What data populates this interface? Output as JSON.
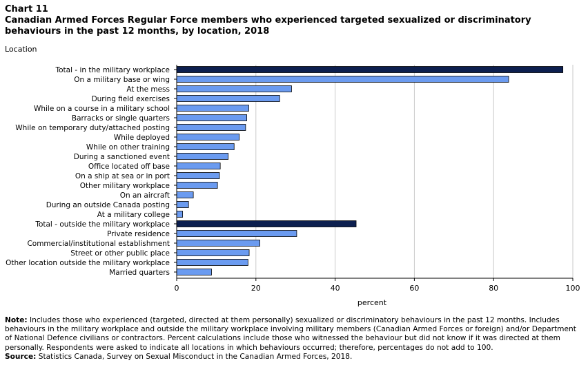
{
  "header": {
    "chart_number": "Chart 11",
    "title": "Canadian Armed Forces Regular Force members who experienced targeted sexualized or discriminatory behaviours in the past 12 months, by location, 2018"
  },
  "chart_data": {
    "type": "bar",
    "orientation": "horizontal",
    "ylabel": "Location",
    "xlabel": "percent",
    "xlim": [
      0,
      100
    ],
    "xticks": [
      0,
      20,
      40,
      60,
      80,
      100
    ],
    "grid": "vertical",
    "categories": [
      "Total - in the military workplace",
      "On a military base or wing",
      "At the mess",
      "During field exercises",
      "While on a course in a military school",
      "Barracks or single quarters",
      "While on temporary duty/attached posting",
      "While deployed",
      "While on other training",
      "During a sanctioned event",
      "Office located off base",
      "On a ship at sea or in port",
      "Other military workplace",
      "On an aircraft",
      "During an outside Canada posting",
      "At a military college",
      "Total - outside the military workplace",
      "Private residence",
      "Commercial/institutional establishment",
      "Street or other public place",
      "Other location outside the military workplace",
      "Married quarters"
    ],
    "values": [
      97.5,
      83.8,
      29,
      26,
      18.2,
      17.7,
      17.4,
      15.8,
      14.5,
      13,
      11,
      10.8,
      10.3,
      4.2,
      3,
      1.5,
      45.3,
      30.3,
      21,
      18.3,
      18,
      8.8
    ],
    "highlight": [
      true,
      false,
      false,
      false,
      false,
      false,
      false,
      false,
      false,
      false,
      false,
      false,
      false,
      false,
      false,
      false,
      true,
      false,
      false,
      false,
      false,
      false
    ],
    "colors": {
      "bar": "#6b9bf0",
      "total": "#0c1f4f",
      "grid": "#c9c9c9",
      "axis": "#000000"
    }
  },
  "footer": {
    "note_label": "Note:",
    "note": "Includes those who experienced (targeted, directed at them personally) sexualized or discriminatory behaviours in the past 12 months. Includes behaviours in the military workplace and outside the military workplace involving military members (Canadian Armed Forces or foreign) and/or Department of National Defence civilians or contractors. Percent calculations include those who witnessed the behaviour but did not know if it was directed at them personally. Respondents were asked to indicate all locations in which behaviours occurred; therefore, percentages do not add to 100.",
    "source_label": "Source:",
    "source": "Statistics Canada, Survey on Sexual Misconduct in the Canadian Armed Forces, 2018."
  }
}
